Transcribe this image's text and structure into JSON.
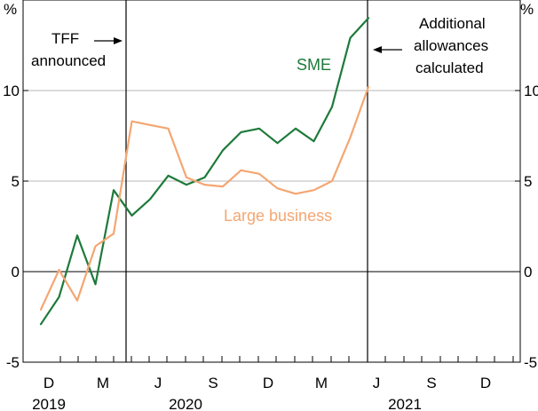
{
  "chart_data": {
    "type": "line",
    "title": "",
    "ylabel_left": "%",
    "ylabel_right": "%",
    "ylim": [
      -5,
      15
    ],
    "yticks": [
      -5,
      0,
      5,
      10
    ],
    "ytick_labels": [
      "-5",
      "0",
      "5",
      "10"
    ],
    "x_tick_labels": [
      "D",
      "M",
      "J",
      "S",
      "D",
      "M",
      "J",
      "S",
      "D"
    ],
    "year_labels": [
      "2019",
      "2020",
      "2021"
    ],
    "series": [
      {
        "name": "SME",
        "color": "#1d7a3a",
        "values": [
          -2.9,
          -1.4,
          2.0,
          -0.7,
          4.5,
          3.1,
          4.0,
          5.3,
          4.8,
          5.2,
          6.7,
          7.7,
          7.9,
          7.1,
          7.9,
          7.2,
          9.1,
          12.9,
          14.0
        ]
      },
      {
        "name": "Large business",
        "color": "#f4a672",
        "values": [
          -2.1,
          0.1,
          -1.6,
          1.4,
          2.1,
          8.3,
          8.1,
          7.9,
          5.2,
          4.8,
          4.7,
          5.6,
          5.4,
          4.6,
          4.3,
          4.5,
          5.0,
          7.4,
          10.2
        ]
      }
    ],
    "annotations": [
      {
        "name": "tff",
        "lines": [
          "TFF",
          "announced"
        ]
      },
      {
        "name": "additional",
        "lines": [
          "Additional",
          "allowances",
          "calculated"
        ]
      }
    ],
    "colors": {
      "grid": "#b8b8b8",
      "axis": "#000000",
      "event_line": "#000000"
    }
  }
}
